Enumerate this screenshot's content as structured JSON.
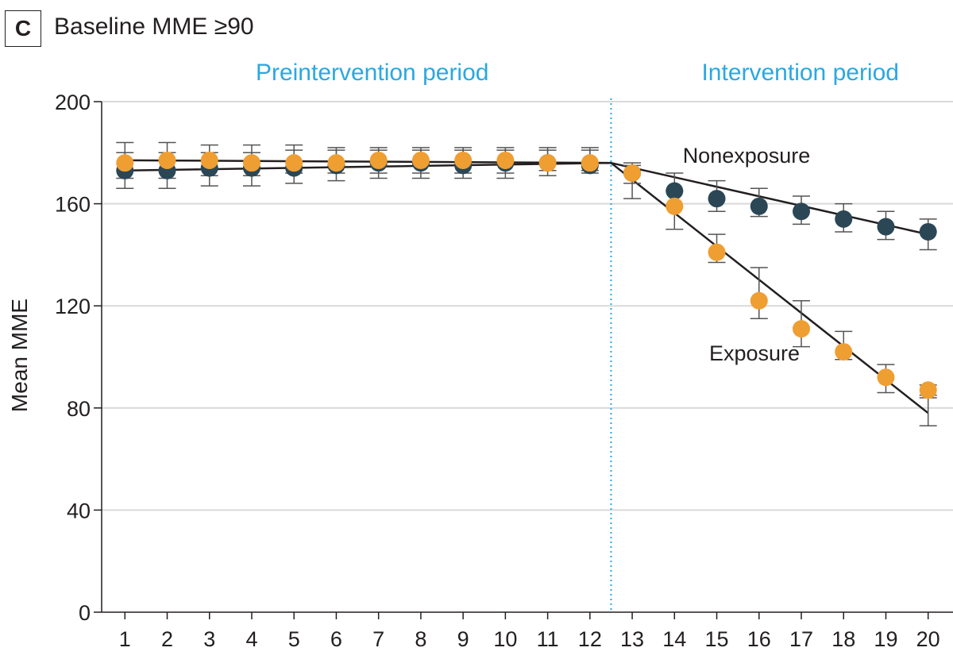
{
  "panel": {
    "letter": "C",
    "title": "Baseline MME ≥90"
  },
  "colors": {
    "nonexposure": "#2b4756",
    "exposure": "#ef9e32",
    "period_label": "#2aa8e0",
    "fit_line": "#231f20",
    "grid": "#d9d9d9"
  },
  "chart_data": {
    "type": "scatter",
    "periods": [
      {
        "label": "Preintervention period"
      },
      {
        "label": "Intervention period"
      }
    ],
    "intervention_x": 12.5,
    "ylabel": "Mean MME",
    "xlabel": "",
    "ylim": [
      0,
      200
    ],
    "yticks": [
      0,
      40,
      80,
      120,
      160,
      200
    ],
    "x": [
      1,
      2,
      3,
      4,
      5,
      6,
      7,
      8,
      9,
      10,
      11,
      12,
      13,
      14,
      15,
      16,
      17,
      18,
      19,
      20
    ],
    "grid": "horizontal",
    "series": [
      {
        "name": "Nonexposure",
        "values": [
          173,
          173,
          174,
          174,
          174,
          175,
          176,
          176,
          175,
          176,
          176,
          175,
          172,
          165,
          162,
          159,
          157,
          154,
          151,
          149
        ],
        "err_low": [
          166,
          166,
          167,
          167,
          168,
          169,
          170,
          170,
          170,
          170,
          171,
          172,
          168,
          159,
          157,
          155,
          152,
          149,
          146,
          142
        ],
        "err_high": [
          180,
          180,
          180,
          180,
          181,
          181,
          181,
          181,
          181,
          181,
          181,
          181,
          175,
          172,
          169,
          166,
          163,
          160,
          157,
          154
        ],
        "fit": [
          [
            1,
            173
          ],
          [
            12.5,
            176
          ],
          [
            20,
            148
          ]
        ]
      },
      {
        "name": "Exposure",
        "values": [
          176,
          177,
          177,
          176,
          176,
          176,
          177,
          177,
          177,
          177,
          176,
          176,
          172,
          159,
          141,
          122,
          111,
          102,
          92,
          87
        ],
        "err_low": [
          170,
          170,
          171,
          171,
          172,
          172,
          172,
          172,
          172,
          172,
          173,
          173,
          162,
          150,
          137,
          115,
          104,
          99,
          86,
          85
        ],
        "err_high": [
          184,
          184,
          183,
          183,
          183,
          182,
          182,
          182,
          182,
          182,
          182,
          182,
          176,
          165,
          148,
          135,
          122,
          110,
          97,
          89
        ],
        "fit": [
          [
            1,
            177
          ],
          [
            12.5,
            176
          ],
          [
            20,
            78
          ]
        ],
        "fit_err": {
          "x": 20,
          "low": 73,
          "high": 84
        }
      }
    ]
  }
}
